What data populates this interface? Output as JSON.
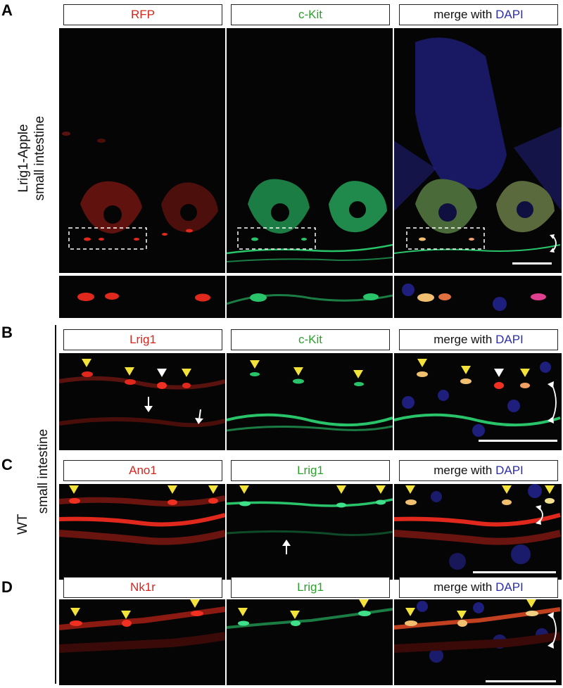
{
  "panels": {
    "A": {
      "letter": "A",
      "side_label_line1": "Lrig1-Apple",
      "side_label_line2": "small intestine",
      "headers": [
        {
          "text": "RFP",
          "color": "#d7261e"
        },
        {
          "text": "c-Kit",
          "color": "#2ca02c"
        },
        {
          "prefix": "merge with ",
          "accent": "DAPI",
          "accent_color": "#2b2ea8"
        }
      ]
    },
    "B": {
      "letter": "B",
      "headers": [
        {
          "text": "Lrig1",
          "color": "#d7261e"
        },
        {
          "text": "c-Kit",
          "color": "#2ca02c"
        },
        {
          "prefix": "merge with ",
          "accent": "DAPI",
          "accent_color": "#2b2ea8"
        }
      ]
    },
    "C": {
      "letter": "C",
      "headers": [
        {
          "text": "Ano1",
          "color": "#d7261e"
        },
        {
          "text": "Lrig1",
          "color": "#2ca02c"
        },
        {
          "prefix": "merge with ",
          "accent": "DAPI",
          "accent_color": "#2b2ea8"
        }
      ]
    },
    "D": {
      "letter": "D",
      "headers": [
        {
          "text": "Nk1r",
          "color": "#d7261e"
        },
        {
          "text": "Lrig1",
          "color": "#2ca02c"
        },
        {
          "prefix": "merge with ",
          "accent": "DAPI",
          "accent_color": "#2b2ea8"
        }
      ]
    }
  },
  "side_labels": {
    "wt": "WT",
    "tissue": "small intestine"
  },
  "colors": {
    "arrowhead": "#f2e23a",
    "arrow": "#ffffff",
    "red_channel": "#e0281c",
    "green_channel": "#29c46a",
    "dapi": "#2a2ab0"
  },
  "icons": [
    "yellow-arrowhead-icon",
    "white-arrowhead-icon",
    "white-arrow-icon",
    "double-arrow-icon",
    "scale-bar"
  ]
}
